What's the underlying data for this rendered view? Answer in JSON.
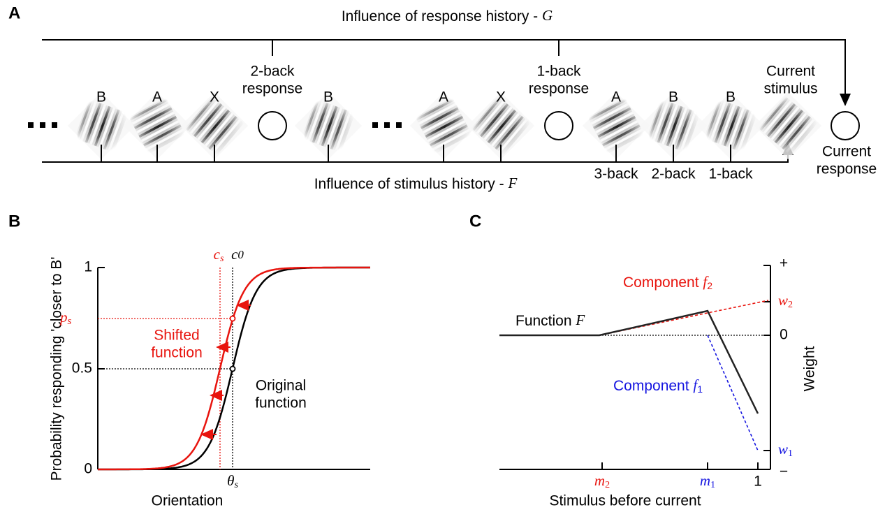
{
  "panel_a": {
    "label": "A",
    "response_history": {
      "text": "Influence of response history - ",
      "symbol": "G"
    },
    "stimulus_history": {
      "text": "Influence of stimulus history - ",
      "symbol": "F"
    },
    "stimuli_labels": [
      "B",
      "A",
      "X",
      "B",
      "A",
      "X",
      "A",
      "B",
      "B"
    ],
    "responses": [
      [
        "2-back",
        "response"
      ],
      [
        "1-back",
        "response"
      ]
    ],
    "current_stimulus": [
      "Current",
      "stimulus"
    ],
    "current_response": [
      "Current",
      "response"
    ],
    "lags": [
      "3-back",
      "2-back",
      "1-back"
    ]
  },
  "panel_b": {
    "label": "B",
    "y_label": "Probability responding 'closer to B'",
    "x_label": "Orientation",
    "yticks": [
      "1",
      "0.5",
      "0"
    ],
    "c_s": {
      "base": "c",
      "sub": "s"
    },
    "c_0": {
      "base": "c",
      "sub": "0"
    },
    "p_s": {
      "base": "p",
      "sub": "s"
    },
    "theta_s": {
      "base": "θ",
      "sub": "s"
    },
    "shifted": [
      "Shifted",
      "function"
    ],
    "original": [
      "Original",
      "function"
    ]
  },
  "panel_c": {
    "label": "C",
    "x_label": "Stimulus before current",
    "y_label": "Weight",
    "yticks": {
      "plus": "+",
      "zero": "0",
      "minus": "−"
    },
    "w2": {
      "base": "w",
      "sub": "2"
    },
    "w1": {
      "base": "w",
      "sub": "1"
    },
    "m2": {
      "base": "m",
      "sub": "2"
    },
    "m1": {
      "base": "m",
      "sub": "1"
    },
    "one": "1",
    "function_F": {
      "text": "Function ",
      "symbol": "F"
    },
    "component_f2": {
      "text": "Component ",
      "base": "f",
      "sub": "2"
    },
    "component_f1": {
      "text": "Component ",
      "base": "f",
      "sub": "1"
    }
  }
}
